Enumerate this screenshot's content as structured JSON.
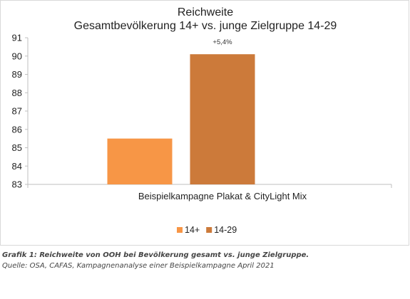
{
  "chart_data": {
    "type": "bar",
    "title": [
      "Reichweite",
      "Gesamtbevölkerung 14+ vs. junge Zielgruppe 14-29"
    ],
    "categories": [
      "Beispielkampagne Plakat & CityLight Mix"
    ],
    "series": [
      {
        "name": "14+",
        "values": [
          85.5
        ],
        "color": "#F79646"
      },
      {
        "name": "14-29",
        "values": [
          90.1
        ],
        "color": "#CC7A3A"
      }
    ],
    "data_labels": [
      {
        "series": "14-29",
        "text": "+5,4%"
      }
    ],
    "yticks": [
      "83",
      "84",
      "85",
      "86",
      "87",
      "88",
      "89",
      "90",
      "91"
    ],
    "ylim": [
      83,
      91
    ],
    "xlabel": "",
    "ylabel": "",
    "grid": false,
    "legend": "bottom-center"
  },
  "caption": {
    "line1": "Grafik 1: Reichweite von OOH bei Bevölkerung gesamt vs. junge Zielgruppe.",
    "line2": "Quelle: OSA, CAFAS, Kampagnenanalyse einer Beispielkampagne April 2021"
  }
}
